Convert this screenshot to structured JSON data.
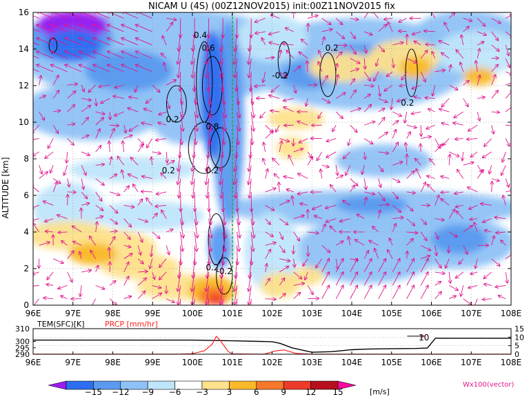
{
  "chart_data": [
    {
      "type": "heatmap",
      "title": "NICAM U (4S) (00Z12NOV2015) init:00Z11NOV2015 fix",
      "ylabel": "ALTITUDE [km]",
      "xlabel": "",
      "x_ticks": [
        "96E",
        "97E",
        "98E",
        "99E",
        "100E",
        "101E",
        "102E",
        "103E",
        "104E",
        "105E",
        "106E",
        "107E",
        "108E"
      ],
      "y_ticks": [
        "0",
        "2",
        "4",
        "6",
        "8",
        "10",
        "12",
        "14",
        "16"
      ],
      "xlim": [
        96,
        108
      ],
      "ylim": [
        0,
        16
      ],
      "grid": true,
      "color_scale": {
        "levels": [
          -15,
          -12,
          -9,
          -6,
          -3,
          3,
          6,
          9,
          12,
          15
        ],
        "labels": [
          "−15",
          "−12",
          "−9",
          "−6",
          "−3",
          "3",
          "6",
          "9",
          "12",
          "15"
        ],
        "colors": [
          "#9a1ef0",
          "#2d6ef0",
          "#5a9af0",
          "#8ec2f6",
          "#bfe5fa",
          "#ffffff",
          "#fde18c",
          "#f9b92a",
          "#f6782a",
          "#ee3a2a",
          "#b80f1e",
          "#ff0aa0"
        ],
        "units": "[m/s]"
      },
      "contour_labels": [
        {
          "text": "0.4",
          "x": 100.2,
          "y": 14.6
        },
        {
          "text": "0.6",
          "x": 100.4,
          "y": 13.9
        },
        {
          "text": "0.2",
          "x": 103.5,
          "y": 13.9
        },
        {
          "text": "-0.2",
          "x": 102.2,
          "y": 12.4
        },
        {
          "text": "0.2",
          "x": 105.4,
          "y": 10.9
        },
        {
          "text": "0.2",
          "x": 99.5,
          "y": 10.0
        },
        {
          "text": "0.8",
          "x": 100.5,
          "y": 9.6
        },
        {
          "text": "0.2",
          "x": 99.4,
          "y": 7.2
        },
        {
          "text": "0.2",
          "x": 100.5,
          "y": 7.2
        },
        {
          "text": "0.2",
          "x": 100.5,
          "y": 1.9
        },
        {
          "text": "-0.2",
          "x": 100.8,
          "y": 1.7
        }
      ],
      "vector_legend": "Wx100(vector)"
    },
    {
      "type": "line",
      "title": "",
      "left_label": "TEM(SFC)[K]",
      "right_label": "PRCP [mm/hr]",
      "y_left_ticks": [
        "290",
        "295",
        "300",
        "310"
      ],
      "y_right_ticks": [
        "0",
        "5",
        "10",
        "15"
      ],
      "xlim": [
        96,
        108
      ],
      "y_left_range": [
        290,
        310
      ],
      "y_right_range": [
        0,
        15
      ],
      "series": [
        {
          "name": "TEM(SFC)[K]",
          "color": "#000000",
          "x": [
            96,
            99,
            100,
            101,
            102,
            102.2,
            102.5,
            103,
            103.5,
            104,
            104.4,
            104.8,
            105.2,
            105.6,
            105.9,
            106.1,
            108
          ],
          "y": [
            301,
            301,
            301,
            300.5,
            299.8,
            298.5,
            295,
            291.5,
            292,
            293.5,
            294,
            294.2,
            294.4,
            294.5,
            294.8,
            302.5,
            302.5
          ]
        },
        {
          "name": "PRCP [mm/hr]",
          "color": "#ff2020",
          "x": [
            96,
            99.6,
            100,
            100.3,
            100.5,
            100.6,
            100.7,
            100.9,
            101,
            101.8,
            102.1,
            102.3,
            102.6,
            103,
            108
          ],
          "y": [
            0,
            0,
            0.3,
            2,
            6,
            10.5,
            8,
            1.5,
            0.2,
            0,
            2,
            2.5,
            0.5,
            0,
            0
          ]
        }
      ],
      "annotation": "10"
    }
  ]
}
